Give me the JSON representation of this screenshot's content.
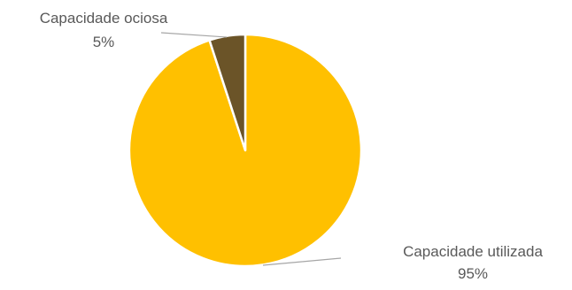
{
  "chart_data": {
    "type": "pie",
    "categories": [
      "Capacidade utilizada",
      "Capacidade ociosa"
    ],
    "values": [
      95,
      5
    ],
    "value_labels": [
      "95%",
      "5%"
    ],
    "colors": [
      "#FFC000",
      "#6B5428"
    ],
    "leader_line_color": "#A6A6A6",
    "label_color": "#595959",
    "legend": "none"
  }
}
